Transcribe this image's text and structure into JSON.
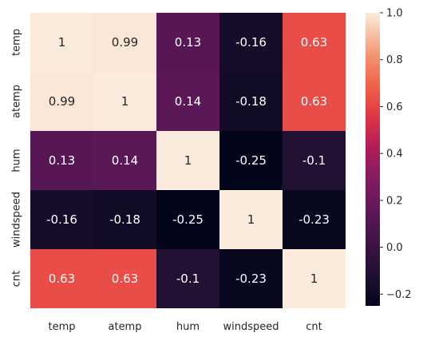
{
  "chart_data": {
    "type": "heatmap",
    "title": "",
    "xlabel": "",
    "ylabel": "",
    "x_categories": [
      "temp",
      "atemp",
      "hum",
      "windspeed",
      "cnt"
    ],
    "y_categories": [
      "temp",
      "atemp",
      "hum",
      "windspeed",
      "cnt"
    ],
    "values": [
      [
        1,
        0.99,
        0.13,
        -0.16,
        0.63
      ],
      [
        0.99,
        1,
        0.14,
        -0.18,
        0.63
      ],
      [
        0.13,
        0.14,
        1,
        -0.25,
        -0.1
      ],
      [
        -0.16,
        -0.18,
        -0.25,
        1,
        -0.23
      ],
      [
        0.63,
        0.63,
        -0.1,
        -0.23,
        1
      ]
    ],
    "value_labels": [
      [
        "1",
        "0.99",
        "0.13",
        "-0.16",
        "0.63"
      ],
      [
        "0.99",
        "1",
        "0.14",
        "-0.18",
        "0.63"
      ],
      [
        "0.13",
        "0.14",
        "1",
        "-0.25",
        "-0.1"
      ],
      [
        "-0.16",
        "-0.18",
        "-0.25",
        "1",
        "-0.23"
      ],
      [
        "0.63",
        "0.63",
        "-0.1",
        "-0.23",
        "1"
      ]
    ],
    "colormap": "rocket",
    "color_range": [
      -0.25,
      1
    ],
    "colorbar": {
      "ticks": [
        -0.2,
        0.0,
        0.2,
        0.4,
        0.6,
        0.8,
        1.0
      ],
      "tick_labels": [
        "−0.2",
        "0.0",
        "0.2",
        "0.4",
        "0.6",
        "0.8",
        "1.0"
      ],
      "placement": "right"
    },
    "grid": false,
    "legend": "none"
  }
}
